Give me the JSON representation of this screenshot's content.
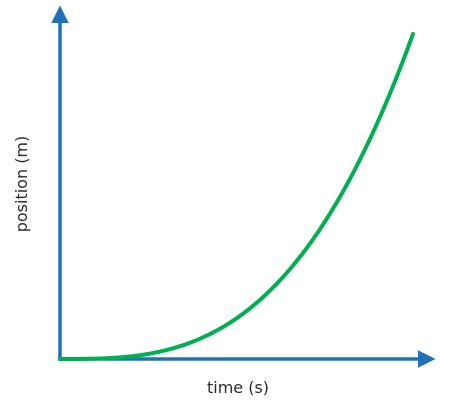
{
  "chart_data": {
    "type": "line",
    "title": "",
    "xlabel": "time (s)",
    "ylabel": "position (m)",
    "axis_ticks": false,
    "grid": false,
    "axis_color": "#1f72b8",
    "series": [
      {
        "color": "#00b050",
        "shape": "cubic-increasing",
        "x": [
          0,
          0.1,
          0.2,
          0.3,
          0.4,
          0.5,
          0.6,
          0.7,
          0.8,
          0.9,
          1.0
        ],
        "y": [
          0,
          0.001,
          0.008,
          0.027,
          0.064,
          0.125,
          0.216,
          0.343,
          0.512,
          0.729,
          1.0
        ]
      }
    ]
  }
}
